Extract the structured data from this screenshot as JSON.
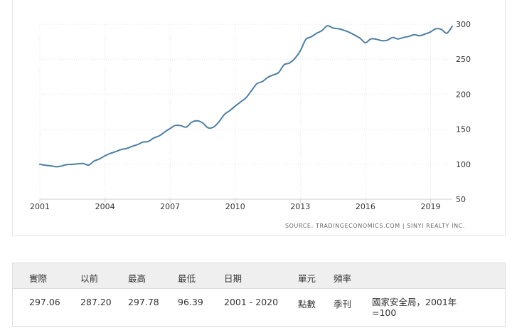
{
  "chart_data": {
    "type": "line",
    "title": "",
    "xlabel": "",
    "ylabel": "",
    "x_ticks": [
      "2001",
      "2004",
      "2007",
      "2010",
      "2013",
      "2016",
      "2019"
    ],
    "y_ticks": [
      "50",
      "100",
      "150",
      "200",
      "250",
      "300"
    ],
    "xlim": [
      2001.0,
      2020.0
    ],
    "ylim": [
      50,
      300
    ],
    "grid": true,
    "line_color": "#4d7fa3",
    "source": "SOURCE: TRADINGECONOMICS.COM | SINYI REALTY INC.",
    "series": [
      {
        "x": [
          2001.0,
          2001.25,
          2001.5,
          2001.75,
          2002.0,
          2002.25,
          2002.5,
          2002.75,
          2003.0,
          2003.25,
          2003.5,
          2003.75,
          2004.0,
          2004.25,
          2004.5,
          2004.75,
          2005.0,
          2005.25,
          2005.5,
          2005.75,
          2006.0,
          2006.25,
          2006.5,
          2006.75,
          2007.0,
          2007.25,
          2007.5,
          2007.75,
          2008.0,
          2008.25,
          2008.5,
          2008.75,
          2009.0,
          2009.25,
          2009.5,
          2009.75,
          2010.0,
          2010.25,
          2010.5,
          2010.75,
          2011.0,
          2011.25,
          2011.5,
          2011.75,
          2012.0,
          2012.25,
          2012.5,
          2012.75,
          2013.0,
          2013.25,
          2013.5,
          2013.75,
          2014.0,
          2014.25,
          2014.5,
          2014.75,
          2015.0,
          2015.25,
          2015.5,
          2015.75,
          2016.0,
          2016.25,
          2016.5,
          2016.75,
          2017.0,
          2017.25,
          2017.5,
          2017.75,
          2018.0,
          2018.25,
          2018.5,
          2018.75,
          2019.0,
          2019.25,
          2019.5,
          2019.75,
          2020.0
        ],
        "values": [
          100.0,
          98.5,
          97.8,
          96.39,
          97.5,
          99.5,
          99.8,
          100.5,
          101.0,
          98.8,
          104.5,
          107.5,
          112.0,
          115.5,
          118.0,
          121.0,
          122.5,
          125.5,
          128.0,
          131.5,
          132.5,
          137.5,
          140.5,
          146.0,
          151.0,
          155.5,
          155.0,
          153.0,
          160.0,
          162.0,
          159.0,
          152.0,
          153.0,
          160.5,
          171.0,
          176.5,
          183.0,
          189.0,
          195.0,
          205.0,
          215.0,
          218.0,
          224.0,
          227.5,
          231.0,
          242.0,
          244.5,
          251.0,
          262.0,
          278.0,
          282.0,
          287.0,
          291.0,
          297.78,
          294.5,
          293.5,
          291.5,
          288.5,
          284.5,
          280.0,
          273.5,
          279.0,
          278.5,
          276.5,
          277.0,
          281.0,
          279.0,
          281.0,
          282.5,
          285.0,
          283.5,
          286.0,
          289.0,
          293.5,
          292.5,
          287.2,
          297.06
        ]
      }
    ]
  },
  "table": {
    "headers": [
      "實際",
      "以前",
      "最高",
      "最低",
      "日期",
      "單元",
      "頻率",
      ""
    ],
    "row": [
      "297.06",
      "287.20",
      "297.78",
      "96.39",
      "2001 - 2020",
      "點數",
      "季刊",
      "國家安全局，2001年=100"
    ]
  }
}
